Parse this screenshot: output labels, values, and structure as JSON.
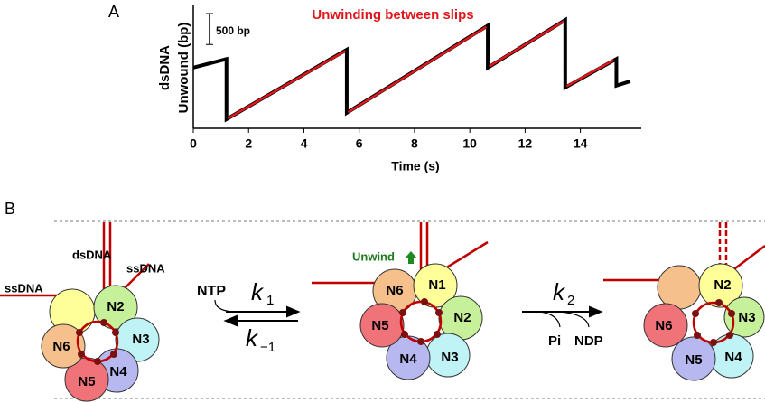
{
  "chart_data": {
    "type": "line",
    "panel_label": "A",
    "title": "Unwinding between slips",
    "xlabel": "Time (s)",
    "ylabel": [
      "dsDNA",
      "Unwound (bp)"
    ],
    "scale_bar": {
      "value": 500,
      "label": "500 bp"
    },
    "xlim": [
      0,
      16.2
    ],
    "xticks": [
      0,
      2,
      4,
      6,
      8,
      10,
      12,
      14
    ],
    "ylim": [
      0,
      2000
    ],
    "series": [
      {
        "color": "#000000",
        "x": [
          0,
          1.2,
          1.2,
          5.55,
          5.55,
          10.65,
          10.65,
          13.45,
          13.45,
          15.3,
          15.3,
          15.8
        ],
        "values": [
          980,
          1120,
          146,
          1270,
          250,
          1660,
          980,
          1750,
          660,
          1120,
          690,
          760
        ]
      },
      {
        "color": "#e0161b",
        "x": [
          1.25,
          5.5,
          5.55,
          5.6,
          10.6,
          10.65,
          10.7,
          13.4,
          13.45,
          13.5,
          15.2
        ],
        "values": [
          160,
          1250,
          null,
          260,
          1640,
          null,
          1000,
          1730,
          null,
          680,
          1100
        ]
      }
    ]
  },
  "diagram": {
    "panel_label": "B",
    "state1": [
      "N2",
      "N3",
      "N4",
      "N5",
      "N6"
    ],
    "state2": [
      "N6",
      "N1",
      "N2",
      "N3",
      "N4",
      "N5"
    ],
    "state3": [
      "N2",
      "N3",
      "N4",
      "N5",
      "N6"
    ],
    "dsdna": "dsDNA",
    "ssdna_right": "ssDNA",
    "ssdna_left": "ssDNA",
    "unwind": "Unwind",
    "ntp": "NTP",
    "k1": {
      "base": "k",
      "sub": "1"
    },
    "k_1": {
      "base": "k",
      "sub": "−1"
    },
    "k2": {
      "base": "k",
      "sub": "2"
    },
    "pi": "Pi",
    "ndp": "NDP"
  }
}
